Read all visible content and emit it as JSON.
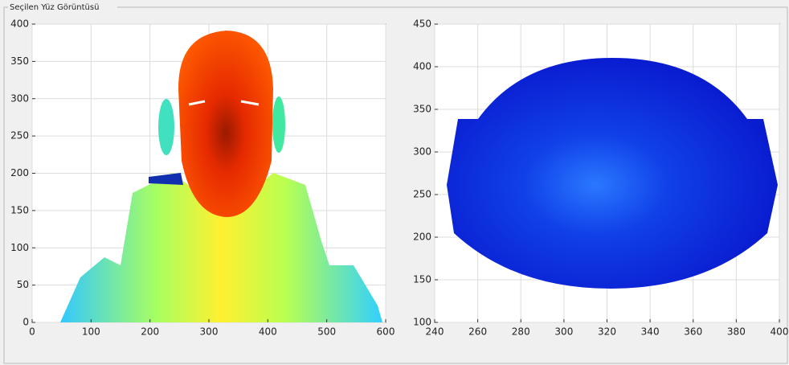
{
  "panel": {
    "title": "Seçilen Yüz Görüntüsü"
  },
  "chart_data": [
    {
      "type": "image",
      "xlim": [
        0,
        600
      ],
      "ylim": [
        0,
        400
      ],
      "xticks": [
        0,
        100,
        200,
        300,
        400,
        500,
        600
      ],
      "yticks": [
        0,
        50,
        100,
        150,
        200,
        250,
        300,
        350,
        400
      ],
      "grid": true
    },
    {
      "type": "image",
      "xlim": [
        240,
        400
      ],
      "ylim": [
        100,
        450
      ],
      "xticks": [
        240,
        260,
        280,
        300,
        320,
        340,
        360,
        380,
        400
      ],
      "yticks": [
        100,
        150,
        200,
        250,
        300,
        350,
        400,
        450
      ],
      "grid": true
    }
  ]
}
